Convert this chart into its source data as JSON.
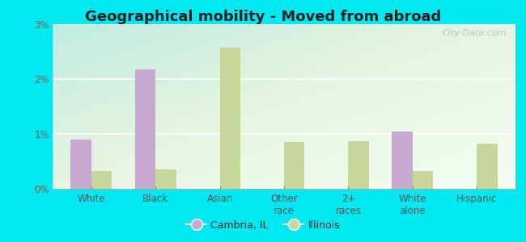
{
  "title": "Geographical mobility - Moved from abroad",
  "categories": [
    "White",
    "Black",
    "Asian",
    "Other\nrace",
    "2+\nraces",
    "White\nalone",
    "Hispanic"
  ],
  "cambria_values": [
    0.9,
    2.18,
    0.0,
    0.0,
    0.0,
    1.05,
    0.0
  ],
  "illinois_values": [
    0.32,
    0.35,
    2.58,
    0.85,
    0.87,
    0.33,
    0.82
  ],
  "cambria_color": "#c9a8d4",
  "illinois_color": "#c8d89a",
  "ylim": [
    0,
    3.0
  ],
  "yticks": [
    0,
    1,
    2,
    3
  ],
  "ytick_labels": [
    "0%",
    "1%",
    "2%",
    "3%"
  ],
  "outer_bg": "#00e8f0",
  "bar_width": 0.32,
  "legend_cambria": "Cambria, IL",
  "legend_illinois": "Illinois",
  "watermark": "City-Data.com",
  "title_fontsize": 13,
  "tick_fontsize": 8.5,
  "legend_fontsize": 9
}
